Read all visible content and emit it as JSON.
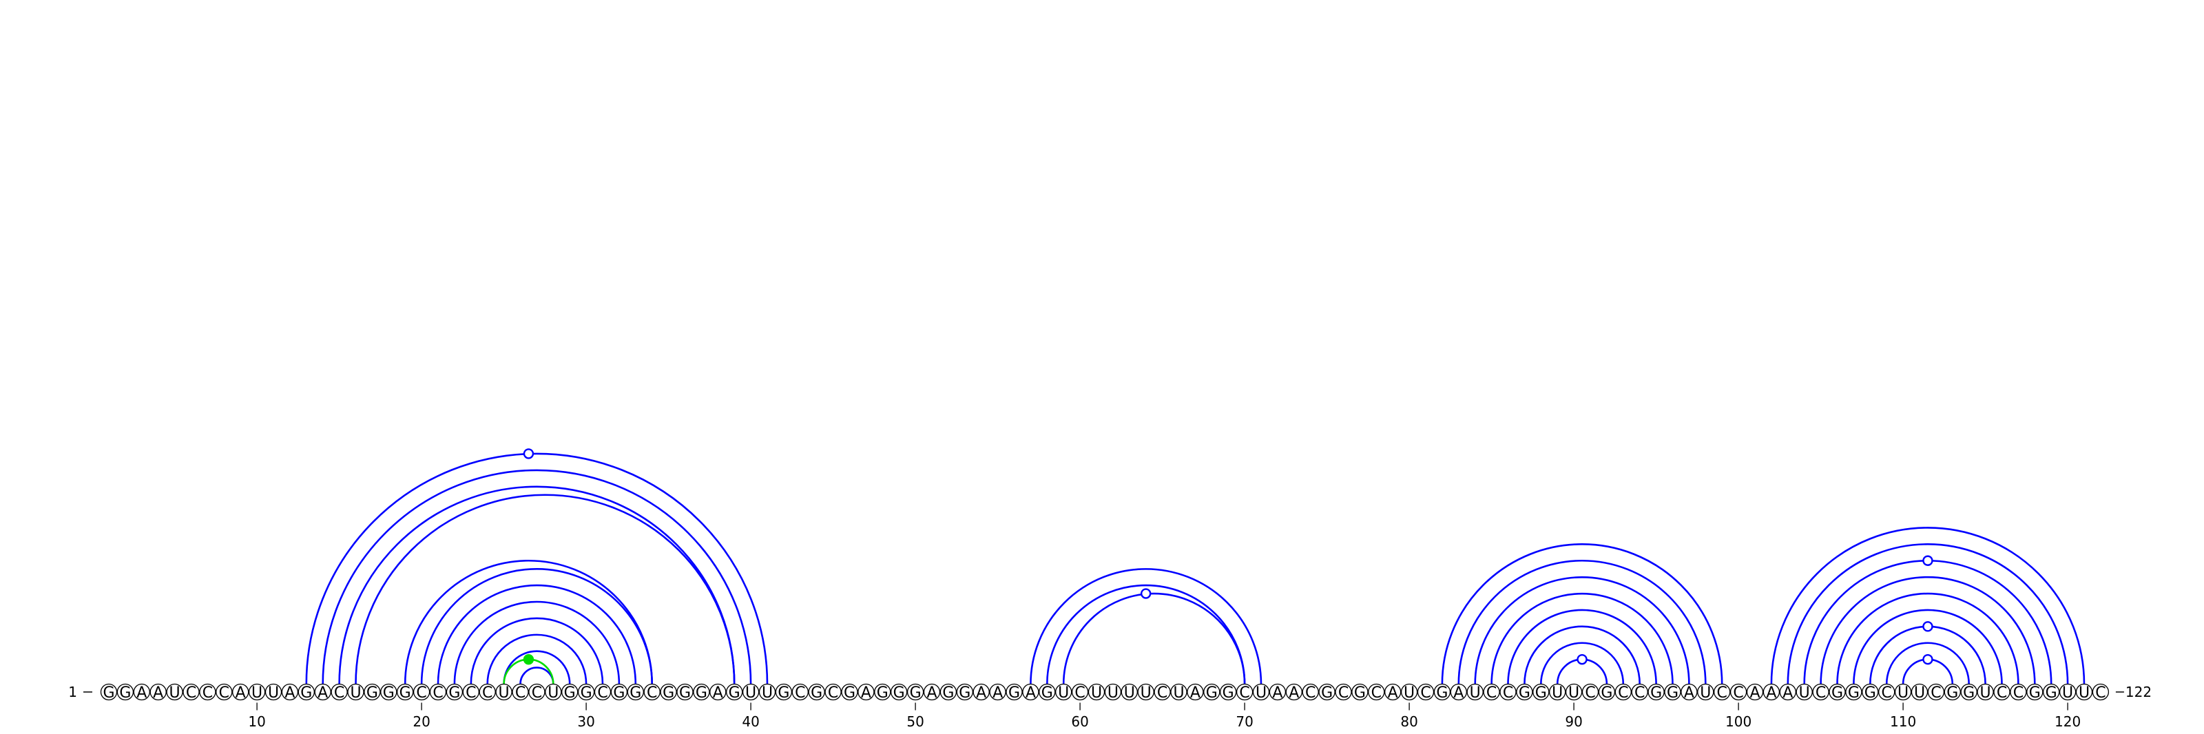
{
  "sequence": {
    "start_label": "1",
    "end_label": "122",
    "bases": "GGAAUCCCAUUAGACUGGGCCGCCUCCUGGCGGCGGGAGUUGCGCGAGGGAGGAAGAGUCUUUUCUAGGCUAACGCGCAUCGAUCCGGUUCGCCGGAUCCAAAUCGGGCUUCGGUCCGGUUC"
  },
  "ticks": [
    {
      "pos": 10,
      "label": "10"
    },
    {
      "pos": 20,
      "label": "20"
    },
    {
      "pos": 30,
      "label": "30"
    },
    {
      "pos": 40,
      "label": "40"
    },
    {
      "pos": 50,
      "label": "50"
    },
    {
      "pos": 60,
      "label": "60"
    },
    {
      "pos": 70,
      "label": "70"
    },
    {
      "pos": 80,
      "label": "80"
    },
    {
      "pos": 90,
      "label": "90"
    },
    {
      "pos": 100,
      "label": "100"
    },
    {
      "pos": 110,
      "label": "110"
    },
    {
      "pos": 120,
      "label": "120"
    }
  ],
  "colors": {
    "arc_default": "#0000ff",
    "arc_highlight": "#00dd00",
    "marker_fill": "#ffffff"
  },
  "arcs": [
    {
      "i": 13,
      "j": 41,
      "color": "blue"
    },
    {
      "i": 14,
      "j": 40,
      "color": "blue"
    },
    {
      "i": 15,
      "j": 39,
      "color": "blue"
    },
    {
      "i": 16,
      "j": 39,
      "color": "blue"
    },
    {
      "i": 19,
      "j": 34,
      "color": "blue"
    },
    {
      "i": 20,
      "j": 34,
      "color": "blue"
    },
    {
      "i": 21,
      "j": 33,
      "color": "blue"
    },
    {
      "i": 22,
      "j": 32,
      "color": "blue"
    },
    {
      "i": 23,
      "j": 31,
      "color": "blue"
    },
    {
      "i": 24,
      "j": 30,
      "color": "blue"
    },
    {
      "i": 25,
      "j": 29,
      "color": "blue"
    },
    {
      "i": 26,
      "j": 28,
      "color": "blue"
    },
    {
      "i": 25,
      "j": 28,
      "color": "green"
    },
    {
      "i": 57,
      "j": 71,
      "color": "blue"
    },
    {
      "i": 58,
      "j": 70,
      "color": "blue"
    },
    {
      "i": 59,
      "j": 70,
      "color": "blue"
    },
    {
      "i": 82,
      "j": 99,
      "color": "blue"
    },
    {
      "i": 83,
      "j": 98,
      "color": "blue"
    },
    {
      "i": 84,
      "j": 97,
      "color": "blue"
    },
    {
      "i": 85,
      "j": 96,
      "color": "blue"
    },
    {
      "i": 86,
      "j": 95,
      "color": "blue"
    },
    {
      "i": 87,
      "j": 94,
      "color": "blue"
    },
    {
      "i": 88,
      "j": 93,
      "color": "blue"
    },
    {
      "i": 89,
      "j": 92,
      "color": "blue"
    },
    {
      "i": 102,
      "j": 121,
      "color": "blue"
    },
    {
      "i": 103,
      "j": 120,
      "color": "blue"
    },
    {
      "i": 104,
      "j": 119,
      "color": "blue"
    },
    {
      "i": 105,
      "j": 118,
      "color": "blue"
    },
    {
      "i": 106,
      "j": 117,
      "color": "blue"
    },
    {
      "i": 107,
      "j": 116,
      "color": "blue"
    },
    {
      "i": 108,
      "j": 115,
      "color": "blue"
    },
    {
      "i": 109,
      "j": 114,
      "color": "blue"
    },
    {
      "i": 110,
      "j": 113,
      "color": "blue"
    }
  ],
  "markers": [
    {
      "pos": 26.5,
      "over_arc": [
        13,
        41
      ],
      "color": "blue"
    },
    {
      "pos": 26.5,
      "over_arc": [
        25,
        28
      ],
      "color": "green"
    },
    {
      "pos": 64,
      "over_arc": [
        59,
        70
      ],
      "color": "blue"
    },
    {
      "pos": 90.5,
      "over_arc": [
        89,
        92
      ],
      "color": "blue"
    },
    {
      "pos": 111.5,
      "over_arc": [
        104,
        119
      ],
      "color": "blue"
    },
    {
      "pos": 111.5,
      "over_arc": [
        108,
        115
      ],
      "color": "blue"
    },
    {
      "pos": 111.5,
      "over_arc": [
        110,
        113
      ],
      "color": "blue"
    }
  ]
}
